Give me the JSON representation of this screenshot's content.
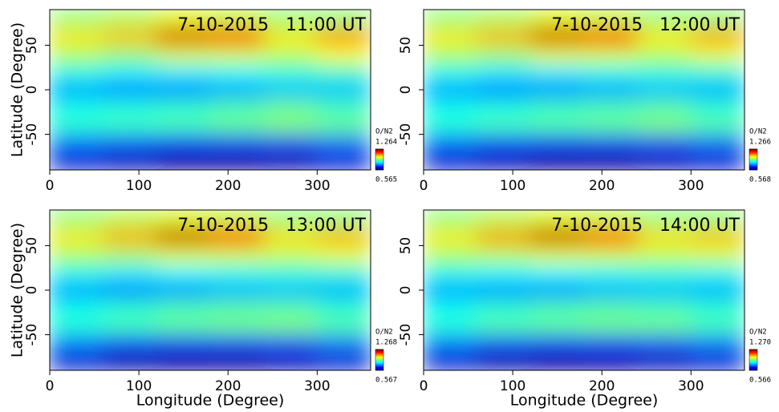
{
  "chart_data": [
    {
      "type": "heatmap",
      "title": "7-10-2015   11:00 UT",
      "ylabel": "Latitude (Degree)",
      "xlim": [
        0,
        360
      ],
      "ylim": [
        -90,
        90
      ],
      "xticks": [
        0,
        100,
        200,
        300
      ],
      "yticks": [
        -50,
        0,
        50
      ],
      "xbins": [
        0,
        60,
        120,
        180,
        240,
        300,
        360
      ],
      "ybins": [
        -90,
        -70,
        -50,
        -30,
        -10,
        10,
        30,
        50,
        70,
        90
      ],
      "z": [
        [
          0.62,
          0.6,
          0.58,
          0.58,
          0.59,
          0.62
        ],
        [
          0.72,
          0.7,
          0.66,
          0.66,
          0.68,
          0.72
        ],
        [
          0.86,
          0.87,
          0.88,
          0.9,
          0.92,
          0.9
        ],
        [
          0.84,
          0.85,
          0.86,
          0.88,
          0.9,
          0.87
        ],
        [
          0.76,
          0.74,
          0.74,
          0.76,
          0.78,
          0.78
        ],
        [
          0.84,
          0.82,
          0.82,
          0.83,
          0.85,
          0.86
        ],
        [
          0.95,
          0.93,
          0.98,
          0.98,
          0.96,
          1.0
        ],
        [
          1.02,
          1.05,
          1.2,
          1.18,
          1.02,
          1.08
        ],
        [
          0.92,
          0.94,
          0.98,
          0.96,
          0.92,
          0.92
        ]
      ],
      "colorbar_label": "O/N2",
      "clim": [
        0.565,
        1.264
      ],
      "cticks": [
        0.565,
        1.264
      ]
    },
    {
      "type": "heatmap",
      "title": "7-10-2015   12:00 UT",
      "xlim": [
        0,
        360
      ],
      "ylim": [
        -90,
        90
      ],
      "xticks": [
        0,
        100,
        200,
        300
      ],
      "yticks": [
        -50,
        0,
        50
      ],
      "xbins": [
        0,
        60,
        120,
        180,
        240,
        300,
        360
      ],
      "ybins": [
        -90,
        -70,
        -50,
        -30,
        -10,
        10,
        30,
        50,
        70,
        90
      ],
      "z": [
        [
          0.62,
          0.6,
          0.58,
          0.58,
          0.6,
          0.62
        ],
        [
          0.72,
          0.69,
          0.66,
          0.67,
          0.69,
          0.72
        ],
        [
          0.86,
          0.88,
          0.89,
          0.9,
          0.92,
          0.89
        ],
        [
          0.84,
          0.85,
          0.87,
          0.88,
          0.89,
          0.86
        ],
        [
          0.76,
          0.74,
          0.75,
          0.76,
          0.78,
          0.77
        ],
        [
          0.84,
          0.82,
          0.82,
          0.84,
          0.85,
          0.85
        ],
        [
          0.95,
          0.94,
          0.99,
          0.98,
          0.96,
          0.99
        ],
        [
          1.02,
          1.06,
          1.21,
          1.17,
          1.02,
          1.07
        ],
        [
          0.92,
          0.94,
          0.98,
          0.96,
          0.92,
          0.92
        ]
      ],
      "colorbar_label": "O/N2",
      "clim": [
        0.568,
        1.266
      ],
      "cticks": [
        0.568,
        1.266
      ]
    },
    {
      "type": "heatmap",
      "title": "7-10-2015   13:00 UT",
      "ylabel": "Latitude (Degree)",
      "xlabel": "Longitude (Degree)",
      "xlim": [
        0,
        360
      ],
      "ylim": [
        -90,
        90
      ],
      "xticks": [
        0,
        100,
        200,
        300
      ],
      "yticks": [
        -50,
        0,
        50
      ],
      "xbins": [
        0,
        60,
        120,
        180,
        240,
        300,
        360
      ],
      "ybins": [
        -90,
        -70,
        -50,
        -30,
        -10,
        10,
        30,
        50,
        70,
        90
      ],
      "z": [
        [
          0.62,
          0.59,
          0.58,
          0.58,
          0.6,
          0.62
        ],
        [
          0.73,
          0.69,
          0.66,
          0.67,
          0.69,
          0.73
        ],
        [
          0.86,
          0.88,
          0.9,
          0.91,
          0.92,
          0.89
        ],
        [
          0.84,
          0.86,
          0.88,
          0.89,
          0.89,
          0.86
        ],
        [
          0.76,
          0.74,
          0.75,
          0.77,
          0.78,
          0.77
        ],
        [
          0.84,
          0.82,
          0.83,
          0.84,
          0.85,
          0.85
        ],
        [
          0.95,
          0.95,
          0.99,
          0.98,
          0.97,
          0.99
        ],
        [
          1.02,
          1.07,
          1.22,
          1.16,
          1.03,
          1.06
        ],
        [
          0.92,
          0.95,
          0.98,
          0.96,
          0.92,
          0.92
        ]
      ],
      "colorbar_label": "O/N2",
      "clim": [
        0.567,
        1.268
      ],
      "cticks": [
        0.567,
        1.268
      ]
    },
    {
      "type": "heatmap",
      "title": "7-10-2015   14:00 UT",
      "xlabel": "Longitude (Degree)",
      "xlim": [
        0,
        360
      ],
      "ylim": [
        -90,
        90
      ],
      "xticks": [
        0,
        100,
        200,
        300
      ],
      "yticks": [
        -50,
        0,
        50
      ],
      "xbins": [
        0,
        60,
        120,
        180,
        240,
        300,
        360
      ],
      "ybins": [
        -90,
        -70,
        -50,
        -30,
        -10,
        10,
        30,
        50,
        70,
        90
      ],
      "z": [
        [
          0.62,
          0.59,
          0.58,
          0.59,
          0.6,
          0.62
        ],
        [
          0.73,
          0.69,
          0.66,
          0.67,
          0.7,
          0.73
        ],
        [
          0.86,
          0.89,
          0.9,
          0.91,
          0.91,
          0.88
        ],
        [
          0.84,
          0.86,
          0.88,
          0.89,
          0.88,
          0.86
        ],
        [
          0.76,
          0.75,
          0.75,
          0.77,
          0.78,
          0.77
        ],
        [
          0.84,
          0.83,
          0.83,
          0.84,
          0.85,
          0.84
        ],
        [
          0.95,
          0.96,
          0.99,
          0.98,
          0.97,
          0.98
        ],
        [
          1.02,
          1.08,
          1.22,
          1.15,
          1.03,
          1.05
        ],
        [
          0.92,
          0.95,
          0.98,
          0.96,
          0.92,
          0.92
        ]
      ],
      "colorbar_label": "O/N2",
      "clim": [
        0.566,
        1.27
      ],
      "cticks": [
        0.566,
        {
          "value": 1.27,
          "label": "1.270"
        }
      ]
    }
  ]
}
